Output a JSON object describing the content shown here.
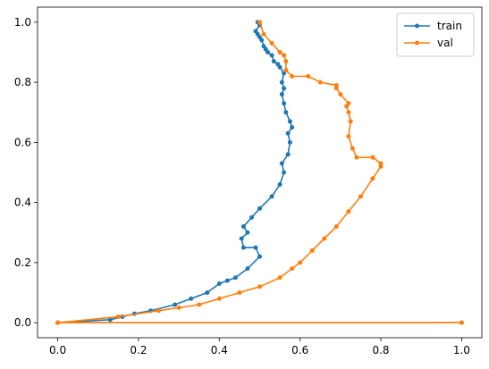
{
  "chart_data": {
    "type": "line",
    "title": "",
    "xlabel": "",
    "ylabel": "",
    "xlim": [
      -0.05,
      1.05
    ],
    "ylim": [
      -0.05,
      1.05
    ],
    "xticks": [
      {
        "value": 0.0,
        "label": "0.0"
      },
      {
        "value": 0.2,
        "label": "0.2"
      },
      {
        "value": 0.4,
        "label": "0.4"
      },
      {
        "value": 0.6,
        "label": "0.6"
      },
      {
        "value": 0.8,
        "label": "0.8"
      },
      {
        "value": 1.0,
        "label": "1.0"
      }
    ],
    "yticks": [
      {
        "value": 0.0,
        "label": "0.0"
      },
      {
        "value": 0.2,
        "label": "0.2"
      },
      {
        "value": 0.4,
        "label": "0.4"
      },
      {
        "value": 0.6,
        "label": "0.6"
      },
      {
        "value": 0.8,
        "label": "0.8"
      },
      {
        "value": 1.0,
        "label": "1.0"
      }
    ],
    "grid": false,
    "legend_position": "top-right",
    "series": [
      {
        "name": "train",
        "color": "#1f77b4",
        "x": [
          0.0,
          0.13,
          0.16,
          0.19,
          0.23,
          0.29,
          0.33,
          0.37,
          0.4,
          0.42,
          0.44,
          0.47,
          0.5,
          0.49,
          0.46,
          0.455,
          0.47,
          0.46,
          0.48,
          0.5,
          0.53,
          0.55,
          0.56,
          0.555,
          0.57,
          0.575,
          0.57,
          0.58,
          0.575,
          0.565,
          0.56,
          0.555,
          0.56,
          0.555,
          0.56,
          0.55,
          0.545,
          0.535,
          0.53,
          0.52,
          0.515,
          0.51,
          0.505,
          0.5,
          0.495,
          0.49,
          0.5,
          0.495
        ],
        "y": [
          0.0,
          0.01,
          0.02,
          0.03,
          0.04,
          0.06,
          0.08,
          0.1,
          0.13,
          0.14,
          0.15,
          0.18,
          0.22,
          0.25,
          0.25,
          0.28,
          0.3,
          0.32,
          0.35,
          0.38,
          0.42,
          0.46,
          0.5,
          0.53,
          0.56,
          0.6,
          0.63,
          0.65,
          0.67,
          0.7,
          0.73,
          0.76,
          0.78,
          0.8,
          0.83,
          0.85,
          0.86,
          0.87,
          0.89,
          0.9,
          0.91,
          0.92,
          0.94,
          0.95,
          0.96,
          0.97,
          0.99,
          1.0
        ],
        "extra_segment": {
          "x": [
            0.0,
            1.0
          ],
          "y": [
            0.0,
            0.0
          ]
        }
      },
      {
        "name": "val",
        "color": "#ff7f0e",
        "x": [
          0.0,
          0.15,
          0.25,
          0.3,
          0.35,
          0.4,
          0.45,
          0.5,
          0.55,
          0.58,
          0.6,
          0.63,
          0.66,
          0.69,
          0.72,
          0.75,
          0.78,
          0.8,
          0.8,
          0.78,
          0.74,
          0.73,
          0.72,
          0.725,
          0.72,
          0.715,
          0.72,
          0.7,
          0.69,
          0.69,
          0.65,
          0.62,
          0.58,
          0.565,
          0.565,
          0.56,
          0.55,
          0.53,
          0.51,
          0.5
        ],
        "y": [
          0.0,
          0.02,
          0.04,
          0.05,
          0.06,
          0.08,
          0.1,
          0.12,
          0.15,
          0.18,
          0.2,
          0.24,
          0.28,
          0.32,
          0.37,
          0.42,
          0.48,
          0.52,
          0.53,
          0.55,
          0.55,
          0.58,
          0.62,
          0.67,
          0.7,
          0.72,
          0.73,
          0.76,
          0.78,
          0.79,
          0.8,
          0.82,
          0.82,
          0.84,
          0.87,
          0.89,
          0.9,
          0.93,
          0.96,
          1.0
        ],
        "extra_segment": {
          "x": [
            0.0,
            1.0
          ],
          "y": [
            0.0,
            0.0
          ]
        }
      }
    ]
  }
}
